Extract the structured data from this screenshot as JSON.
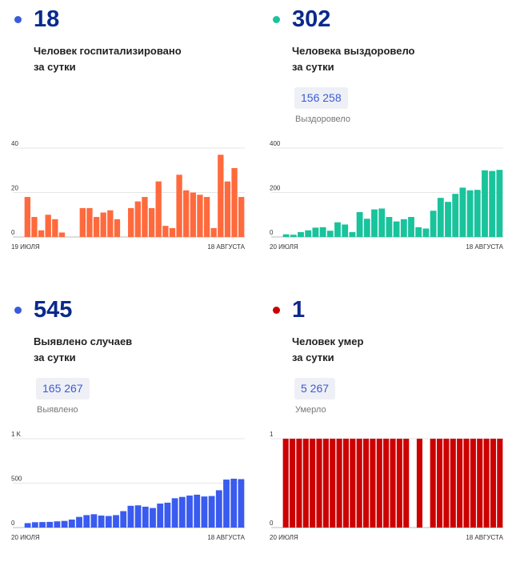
{
  "panels": {
    "hospitalized": {
      "number": "18",
      "line1": "Человек госпитализировано",
      "line2": "за сутки",
      "dot_color": "#3a5bd9"
    },
    "recovered": {
      "number": "302",
      "line1": "Человека выздоровело",
      "line2": "за сутки",
      "total": "156 258",
      "total_label": "Выздоровело",
      "dot_color": "#19c39c"
    },
    "cases": {
      "number": "545",
      "line1": "Выявлено случаев",
      "line2": "за сутки",
      "total": "165 267",
      "total_label": "Выявлено",
      "dot_color": "#3a5bd9"
    },
    "deaths": {
      "number": "1",
      "line1": "Человек умер",
      "line2": "за сутки",
      "total": "5 267",
      "total_label": "Умерло",
      "dot_color": "#cc0000"
    }
  },
  "chart_data": [
    {
      "id": "hospitalized",
      "type": "bar",
      "color": "#ff6a3d",
      "yticks": [
        "0",
        "20",
        "40"
      ],
      "ytick_values": [
        0,
        20,
        40
      ],
      "ylim": [
        0,
        40
      ],
      "x_start_label": "19 ИЮЛЯ",
      "x_end_label": "18 АВГУСТА",
      "values": [
        18,
        9,
        3,
        10,
        8,
        2,
        0,
        0,
        13,
        13,
        9,
        11,
        12,
        8,
        0,
        13,
        16,
        18,
        13,
        25,
        5,
        4,
        28,
        21,
        20,
        19,
        18,
        4,
        37,
        25,
        31,
        18
      ]
    },
    {
      "id": "recovered",
      "type": "bar",
      "color": "#19c39c",
      "yticks": [
        "0",
        "200",
        "400"
      ],
      "ytick_values": [
        0,
        200,
        400
      ],
      "ylim": [
        0,
        400
      ],
      "x_start_label": "20 ИЮЛЯ",
      "x_end_label": "18 АВГУСТА",
      "values": [
        12,
        10,
        22,
        30,
        42,
        44,
        28,
        66,
        56,
        22,
        112,
        82,
        124,
        128,
        90,
        70,
        80,
        90,
        44,
        38,
        118,
        176,
        158,
        194,
        222,
        210,
        212,
        300,
        297,
        302
      ]
    },
    {
      "id": "cases",
      "type": "bar",
      "color": "#3a5bef",
      "yticks": [
        "0",
        "500",
        "1 K"
      ],
      "ytick_values": [
        0,
        500,
        1000
      ],
      "ylim": [
        0,
        1000
      ],
      "x_start_label": "20 ИЮЛЯ",
      "x_end_label": "18 АВГУСТА",
      "values": [
        50,
        60,
        62,
        64,
        70,
        75,
        90,
        120,
        140,
        150,
        135,
        130,
        140,
        185,
        245,
        250,
        235,
        220,
        270,
        280,
        330,
        345,
        360,
        370,
        350,
        355,
        420,
        540,
        550,
        545
      ]
    },
    {
      "id": "deaths",
      "type": "bar",
      "color": "#cc0000",
      "yticks": [
        "0",
        "1"
      ],
      "ytick_values": [
        0,
        1
      ],
      "ylim": [
        0,
        1
      ],
      "x_start_label": "20 ИЮЛЯ",
      "x_end_label": "18 АВГУСТА",
      "values": [
        1,
        1,
        1,
        1,
        1,
        1,
        1,
        1,
        1,
        1,
        1,
        1,
        1,
        1,
        1,
        1,
        1,
        1,
        1,
        0,
        1,
        0,
        1,
        1,
        1,
        1,
        1,
        1,
        1,
        1,
        1,
        1,
        1
      ]
    }
  ]
}
